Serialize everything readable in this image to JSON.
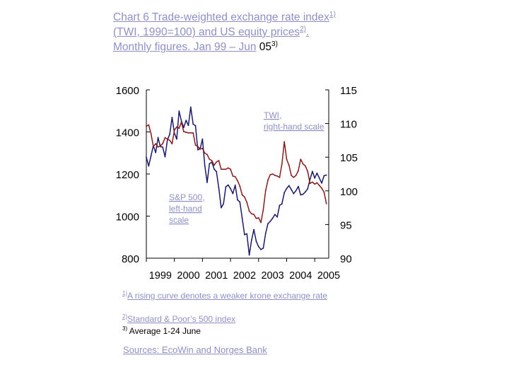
{
  "title": {
    "part1": "Chart 6 Trade-weighted exchange rate index",
    "sup1": "1)",
    "part2": " (TWI, 1990=100) and US equity prices",
    "sup2": "2)",
    "part3": ".",
    "part4": "Monthly figures. Jan 99 – Jun",
    "part5": " 05",
    "sup3": "3)"
  },
  "colors": {
    "twi": "#8b1a1a",
    "sp500": "#1a1a6e",
    "link_text": "#9090c8"
  },
  "chart_data": {
    "type": "line",
    "x_tick_labels": [
      "1999",
      "2000",
      "2001",
      "2002",
      "2003",
      "2004",
      "2005"
    ],
    "left_axis": {
      "ticks": [
        1600,
        1400,
        1200,
        1000,
        800
      ],
      "range": [
        800,
        1600
      ]
    },
    "right_axis": {
      "ticks": [
        115,
        110,
        105,
        100,
        95,
        90
      ],
      "range": [
        90,
        115
      ]
    },
    "x_range": [
      1999.0,
      2005.5
    ],
    "annotations": {
      "twi": [
        "TWI,",
        "right-hand scale"
      ],
      "sp500": [
        "S&P 500,",
        "left-hand",
        "scale"
      ]
    },
    "series": [
      {
        "name": "S&P 500",
        "axis": "left",
        "color": "#1a1a6e",
        "x": [
          1999.0,
          1999.083,
          1999.167,
          1999.25,
          1999.333,
          1999.417,
          1999.5,
          1999.583,
          1999.667,
          1999.75,
          1999.833,
          1999.917,
          2000.0,
          2000.083,
          2000.167,
          2000.25,
          2000.333,
          2000.417,
          2000.5,
          2000.583,
          2000.667,
          2000.75,
          2000.833,
          2000.917,
          2001.0,
          2001.083,
          2001.167,
          2001.25,
          2001.333,
          2001.417,
          2001.5,
          2001.583,
          2001.667,
          2001.75,
          2001.833,
          2001.917,
          2002.0,
          2002.083,
          2002.167,
          2002.25,
          2002.333,
          2002.417,
          2002.5,
          2002.583,
          2002.667,
          2002.75,
          2002.833,
          2002.917,
          2003.0,
          2003.083,
          2003.167,
          2003.25,
          2003.333,
          2003.417,
          2003.5,
          2003.583,
          2003.667,
          2003.75,
          2003.833,
          2003.917,
          2004.0,
          2004.083,
          2004.167,
          2004.25,
          2004.333,
          2004.417,
          2004.5,
          2004.583,
          2004.667,
          2004.75,
          2004.833,
          2004.917,
          2005.0,
          2005.083,
          2005.167,
          2005.25,
          2005.333,
          2005.417
        ],
        "values": [
          1280,
          1238,
          1286,
          1335,
          1302,
          1373,
          1330,
          1328,
          1282,
          1362,
          1389,
          1469,
          1394,
          1366,
          1499,
          1452,
          1421,
          1455,
          1431,
          1518,
          1437,
          1430,
          1315,
          1320,
          1366,
          1240,
          1160,
          1249,
          1256,
          1224,
          1211,
          1133,
          1040,
          1059,
          1139,
          1148,
          1130,
          1107,
          1147,
          1077,
          1067,
          990,
          912,
          916,
          815,
          885,
          936,
          880,
          855,
          841,
          848,
          917,
          964,
          975,
          990,
          1008,
          996,
          1051,
          1058,
          1112,
          1131,
          1145,
          1126,
          1107,
          1121,
          1141,
          1101,
          1104,
          1115,
          1130,
          1174,
          1212,
          1181,
          1204,
          1180,
          1157,
          1192,
          1195
        ]
      },
      {
        "name": "TWI",
        "axis": "right",
        "color": "#8b1a1a",
        "x": [
          1999.0,
          1999.083,
          1999.167,
          1999.25,
          1999.333,
          1999.417,
          1999.5,
          1999.583,
          1999.667,
          1999.75,
          1999.833,
          1999.917,
          2000.0,
          2000.083,
          2000.167,
          2000.25,
          2000.333,
          2000.417,
          2000.5,
          2000.583,
          2000.667,
          2000.75,
          2000.833,
          2000.917,
          2001.0,
          2001.083,
          2001.167,
          2001.25,
          2001.333,
          2001.417,
          2001.5,
          2001.583,
          2001.667,
          2001.75,
          2001.833,
          2001.917,
          2002.0,
          2002.083,
          2002.167,
          2002.25,
          2002.333,
          2002.417,
          2002.5,
          2002.583,
          2002.667,
          2002.75,
          2002.833,
          2002.917,
          2003.0,
          2003.083,
          2003.167,
          2003.25,
          2003.333,
          2003.417,
          2003.5,
          2003.583,
          2003.667,
          2003.75,
          2003.833,
          2003.917,
          2004.0,
          2004.083,
          2004.167,
          2004.25,
          2004.333,
          2004.417,
          2004.5,
          2004.583,
          2004.667,
          2004.75,
          2004.833,
          2004.917,
          2005.0,
          2005.083,
          2005.167,
          2005.25,
          2005.333,
          2005.417
        ],
        "values": [
          109.6,
          109.8,
          108.5,
          106.6,
          107.0,
          106.5,
          106.7,
          107.0,
          107.9,
          107.7,
          107.5,
          107.0,
          109.0,
          109.5,
          109.3,
          110.2,
          108.8,
          108.7,
          108.6,
          108.6,
          108.6,
          106.8,
          106.6,
          106.2,
          106.3,
          105.6,
          105.4,
          104.7,
          104.5,
          103.8,
          104.3,
          104.5,
          103.2,
          103.2,
          103.2,
          103.4,
          103.2,
          102.2,
          102.1,
          101.5,
          100.7,
          99.4,
          99.1,
          98.3,
          97.0,
          96.6,
          96.5,
          95.9,
          96.0,
          95.3,
          97.2,
          100.0,
          101.6,
          102.4,
          102.5,
          102.3,
          102.2,
          102.0,
          104.0,
          107.3,
          104.7,
          103.8,
          102.3,
          102.0,
          102.3,
          103.0,
          104.7,
          104.0,
          103.7,
          102.9,
          101.1,
          101.3,
          101.0,
          101.2,
          100.8,
          100.4,
          99.8,
          98.1
        ]
      }
    ],
    "grid": false,
    "legend": "none"
  },
  "footnotes": [
    {
      "sup": "1)",
      "text": "A rising curve denotes a weaker krone exchange rate"
    },
    {
      "sup": "2)",
      "text": "Standard & Poor’s 500 index"
    },
    {
      "sup": "3)",
      "text": " Average 1-24 June"
    }
  ],
  "sources": "Sources: EcoWin and Norges Bank"
}
